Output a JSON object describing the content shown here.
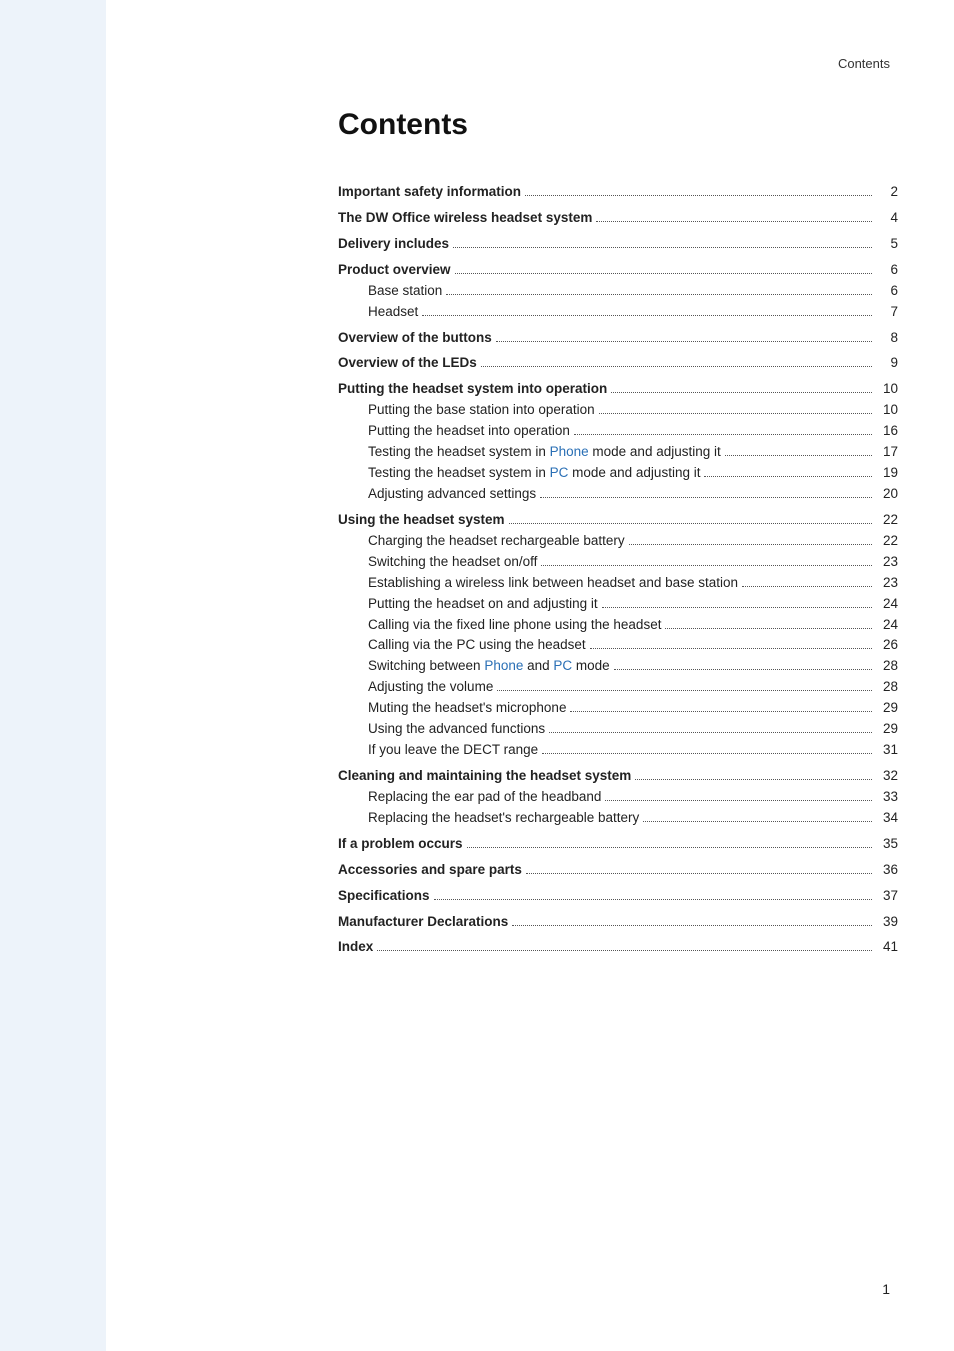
{
  "header": {
    "label": "Contents"
  },
  "title": "Contents",
  "footer": {
    "page_number": "1"
  },
  "colors": {
    "page_bg": "#ffffff",
    "outer_bg": "#edf3fa",
    "text": "#222222",
    "highlight": "#2a6fb5"
  },
  "toc": [
    {
      "type": "item",
      "level": 0,
      "bold": true,
      "page": "2",
      "segments": [
        {
          "text": "Important safety information"
        }
      ]
    },
    {
      "type": "gap"
    },
    {
      "type": "item",
      "level": 0,
      "bold": true,
      "page": "4",
      "segments": [
        {
          "text": "The DW Office wireless headset system"
        }
      ]
    },
    {
      "type": "gap"
    },
    {
      "type": "item",
      "level": 0,
      "bold": true,
      "page": "5",
      "segments": [
        {
          "text": "Delivery includes"
        }
      ]
    },
    {
      "type": "gap"
    },
    {
      "type": "item",
      "level": 0,
      "bold": true,
      "page": "6",
      "segments": [
        {
          "text": "Product overview"
        }
      ]
    },
    {
      "type": "item",
      "level": 1,
      "bold": false,
      "page": "6",
      "segments": [
        {
          "text": "Base station"
        }
      ]
    },
    {
      "type": "item",
      "level": 1,
      "bold": false,
      "page": "7",
      "segments": [
        {
          "text": "Headset"
        }
      ]
    },
    {
      "type": "gap"
    },
    {
      "type": "item",
      "level": 0,
      "bold": true,
      "page": "8",
      "segments": [
        {
          "text": "Overview of the buttons"
        }
      ]
    },
    {
      "type": "gap"
    },
    {
      "type": "item",
      "level": 0,
      "bold": true,
      "page": "9",
      "segments": [
        {
          "text": "Overview of the LEDs"
        }
      ]
    },
    {
      "type": "gap"
    },
    {
      "type": "item",
      "level": 0,
      "bold": true,
      "page": "10",
      "segments": [
        {
          "text": "Putting the headset system into operation"
        }
      ]
    },
    {
      "type": "item",
      "level": 1,
      "bold": false,
      "page": "10",
      "segments": [
        {
          "text": "Putting the base station into operation"
        }
      ]
    },
    {
      "type": "item",
      "level": 1,
      "bold": false,
      "page": "16",
      "segments": [
        {
          "text": "Putting the headset into operation"
        }
      ]
    },
    {
      "type": "item",
      "level": 1,
      "bold": false,
      "page": "17",
      "segments": [
        {
          "text": "Testing the headset system in "
        },
        {
          "text": "Phone",
          "highlight": true
        },
        {
          "text": " mode and adjusting it"
        }
      ]
    },
    {
      "type": "item",
      "level": 1,
      "bold": false,
      "page": "19",
      "segments": [
        {
          "text": "Testing the headset system in "
        },
        {
          "text": "PC",
          "highlight": true
        },
        {
          "text": " mode and adjusting it"
        }
      ]
    },
    {
      "type": "item",
      "level": 1,
      "bold": false,
      "page": "20",
      "segments": [
        {
          "text": "Adjusting advanced settings"
        }
      ]
    },
    {
      "type": "gap"
    },
    {
      "type": "item",
      "level": 0,
      "bold": true,
      "page": "22",
      "segments": [
        {
          "text": "Using the headset system"
        }
      ]
    },
    {
      "type": "item",
      "level": 1,
      "bold": false,
      "page": "22",
      "segments": [
        {
          "text": "Charging the headset rechargeable battery"
        }
      ]
    },
    {
      "type": "item",
      "level": 1,
      "bold": false,
      "page": "23",
      "segments": [
        {
          "text": "Switching the headset on/off"
        }
      ]
    },
    {
      "type": "item",
      "level": 1,
      "bold": false,
      "page": "23",
      "segments": [
        {
          "text": "Establishing a wireless link between headset and base station"
        }
      ]
    },
    {
      "type": "item",
      "level": 1,
      "bold": false,
      "page": "24",
      "segments": [
        {
          "text": "Putting the headset on and adjusting it"
        }
      ]
    },
    {
      "type": "item",
      "level": 1,
      "bold": false,
      "page": "24",
      "segments": [
        {
          "text": "Calling via the fixed line phone using the headset"
        }
      ]
    },
    {
      "type": "item",
      "level": 1,
      "bold": false,
      "page": "26",
      "segments": [
        {
          "text": "Calling via the PC using the headset"
        }
      ]
    },
    {
      "type": "item",
      "level": 1,
      "bold": false,
      "page": "28",
      "segments": [
        {
          "text": "Switching between "
        },
        {
          "text": "Phone",
          "highlight": true
        },
        {
          "text": " and "
        },
        {
          "text": "PC",
          "highlight": true
        },
        {
          "text": " mode"
        }
      ]
    },
    {
      "type": "item",
      "level": 1,
      "bold": false,
      "page": "28",
      "segments": [
        {
          "text": "Adjusting the volume"
        }
      ]
    },
    {
      "type": "item",
      "level": 1,
      "bold": false,
      "page": "29",
      "segments": [
        {
          "text": "Muting the headset's microphone"
        }
      ]
    },
    {
      "type": "item",
      "level": 1,
      "bold": false,
      "page": "29",
      "segments": [
        {
          "text": "Using the advanced functions"
        }
      ]
    },
    {
      "type": "item",
      "level": 1,
      "bold": false,
      "page": "31",
      "segments": [
        {
          "text": "If you leave the DECT range"
        }
      ]
    },
    {
      "type": "gap"
    },
    {
      "type": "item",
      "level": 0,
      "bold": true,
      "page": "32",
      "segments": [
        {
          "text": "Cleaning and maintaining the headset system"
        }
      ]
    },
    {
      "type": "item",
      "level": 1,
      "bold": false,
      "page": "33",
      "segments": [
        {
          "text": "Replacing the ear pad of the headband"
        }
      ]
    },
    {
      "type": "item",
      "level": 1,
      "bold": false,
      "page": "34",
      "segments": [
        {
          "text": "Replacing the headset's rechargeable battery"
        }
      ]
    },
    {
      "type": "gap"
    },
    {
      "type": "item",
      "level": 0,
      "bold": true,
      "page": "35",
      "segments": [
        {
          "text": "If a problem occurs"
        }
      ]
    },
    {
      "type": "gap"
    },
    {
      "type": "item",
      "level": 0,
      "bold": true,
      "page": "36",
      "segments": [
        {
          "text": "Accessories and spare parts"
        }
      ]
    },
    {
      "type": "gap"
    },
    {
      "type": "item",
      "level": 0,
      "bold": true,
      "page": "37",
      "segments": [
        {
          "text": "Specifications"
        }
      ]
    },
    {
      "type": "gap"
    },
    {
      "type": "item",
      "level": 0,
      "bold": true,
      "page": "39",
      "segments": [
        {
          "text": "Manufacturer Declarations"
        }
      ]
    },
    {
      "type": "gap"
    },
    {
      "type": "item",
      "level": 0,
      "bold": true,
      "page": "41",
      "segments": [
        {
          "text": "Index"
        }
      ]
    }
  ]
}
